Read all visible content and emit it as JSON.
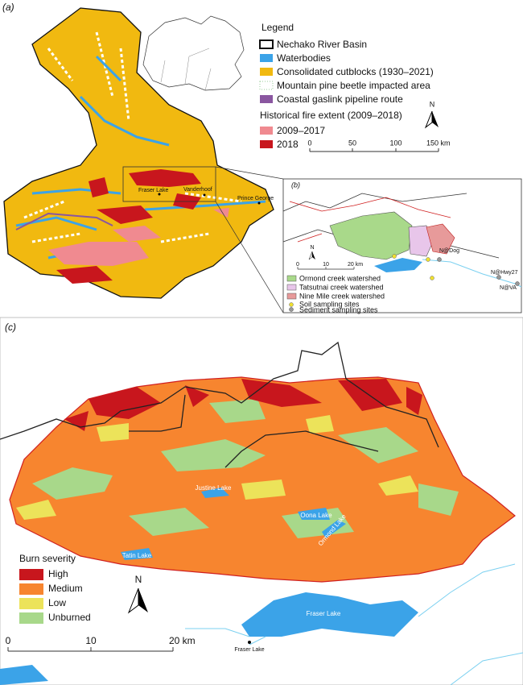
{
  "panel_a": {
    "label": "(a)",
    "legend": {
      "title": "Legend",
      "items": [
        "Nechako River Basin",
        "Waterbodies",
        "Consolidated cutblocks (1930–2021)",
        "Mountain pine beetle impacted area",
        "Coastal gaslink pipeline route"
      ],
      "fire_title": "Historical fire extent (2009–2018)",
      "fire_items": [
        "2009–2017",
        "2018"
      ]
    },
    "scale_bar": [
      "0",
      "50",
      "100",
      "150 km"
    ],
    "north": "N",
    "places": [
      "Fraser Lake",
      "Vanderhoof",
      "Prince George"
    ]
  },
  "panel_b": {
    "label": "(b)",
    "sites": [
      "N@Dog",
      "N@Hwy27",
      "N@VA"
    ],
    "scale_bar": [
      "0",
      "10",
      "20 km"
    ],
    "north": "N",
    "legend": [
      "Ormond creek watershed",
      "Tatsutnai creek watershed",
      "Nine Mile creek watershed",
      "Soil sampling sites",
      "Sediment sampling sites"
    ]
  },
  "panel_c": {
    "label": "(c)",
    "lakes": [
      "Justine Lake",
      "Oona Lake",
      "Ormond Lake",
      "Tatin Lake",
      "Fraser Lake"
    ],
    "town": "Fraser Lake",
    "legend": {
      "title": "Burn severity",
      "items": [
        "High",
        "Medium",
        "Low",
        "Unburned"
      ]
    },
    "north": "N",
    "scale_bar": [
      "0",
      "10",
      "20 km"
    ]
  }
}
